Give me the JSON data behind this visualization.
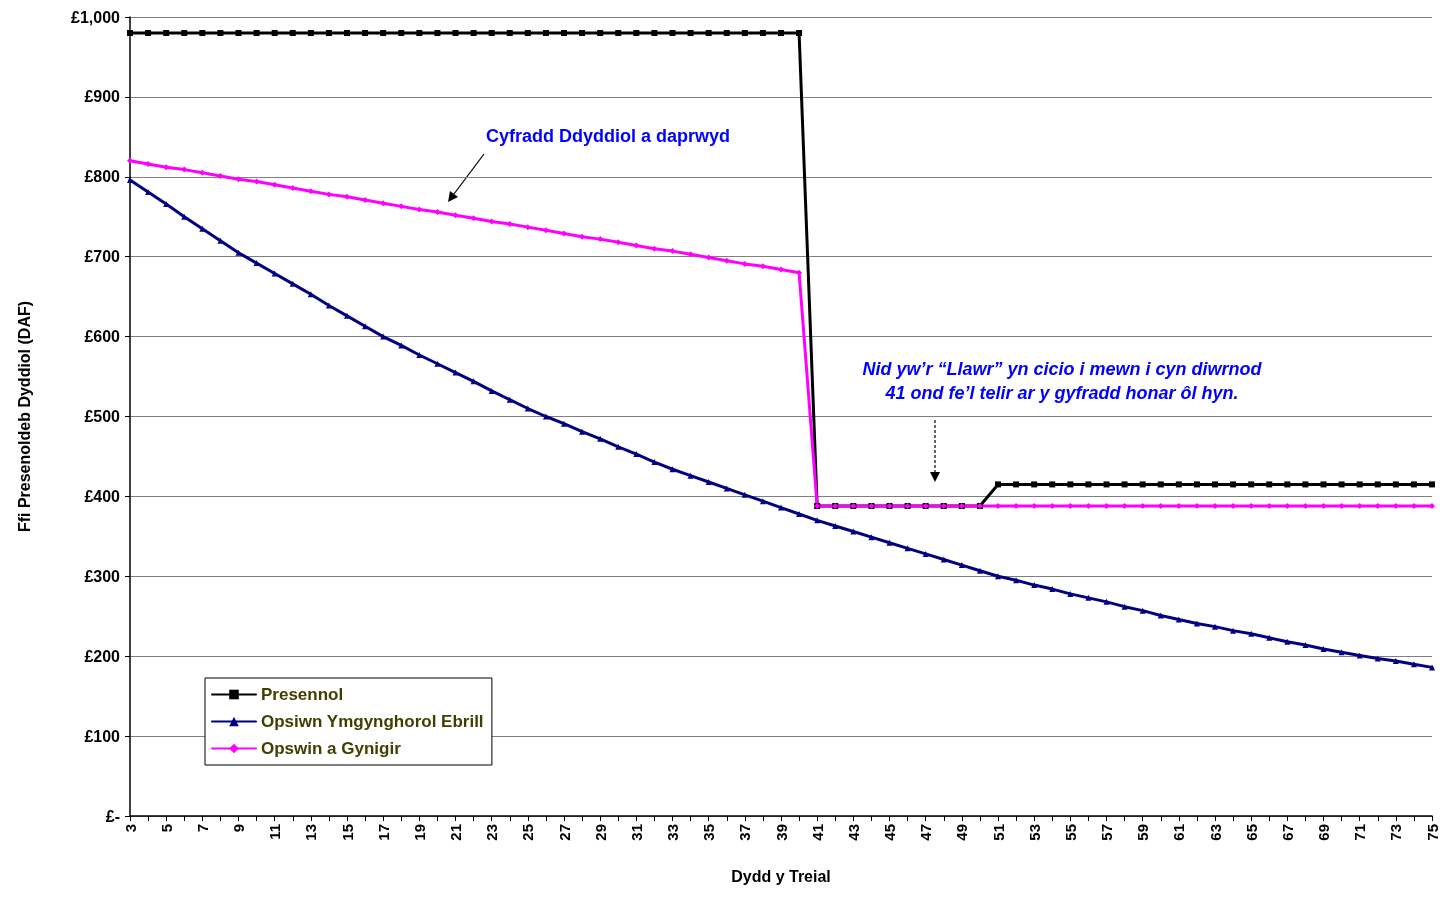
{
  "chart_data": {
    "type": "line",
    "xlabel": "Dydd y Treial",
    "ylabel": "Ffi Presenoldeb Dyddiol (DAF)",
    "categories": [
      "3",
      null,
      "5",
      null,
      "7",
      null,
      "9",
      null,
      "11",
      null,
      "13",
      null,
      "15",
      null,
      "17",
      null,
      "19",
      null,
      "21",
      null,
      "23",
      null,
      "25",
      null,
      "27",
      null,
      "29",
      null,
      "31",
      null,
      "33",
      null,
      "35",
      null,
      "37",
      null,
      "39",
      null,
      "41",
      null,
      "43",
      null,
      "45",
      null,
      "47",
      null,
      "49",
      null,
      "51",
      null,
      "53",
      null,
      "55",
      null,
      "57",
      null,
      "59",
      null,
      "61",
      null,
      "63",
      null,
      "65",
      null,
      "67",
      null,
      "69",
      null,
      "71",
      null,
      "73",
      null,
      "75"
    ],
    "ylim": [
      0,
      1000
    ],
    "yticks": [
      {
        "value": 0,
        "label": "£-"
      },
      {
        "value": 100,
        "label": "£100"
      },
      {
        "value": 200,
        "label": "£200"
      },
      {
        "value": 300,
        "label": "£300"
      },
      {
        "value": 400,
        "label": "£400"
      },
      {
        "value": 500,
        "label": "£500"
      },
      {
        "value": 600,
        "label": "£600"
      },
      {
        "value": 700,
        "label": "£700"
      },
      {
        "value": 800,
        "label": "£800"
      },
      {
        "value": 900,
        "label": "£900"
      },
      {
        "value": 1000,
        "label": "£1,000"
      }
    ],
    "grid": "y",
    "legend": "bottom left",
    "line_style": "solid",
    "series": [
      {
        "name": "Presennol",
        "color": "#000000",
        "marker": "square",
        "values": [
          980,
          980,
          980,
          980,
          980,
          980,
          980,
          980,
          980,
          980,
          980,
          980,
          980,
          980,
          980,
          980,
          980,
          980,
          980,
          980,
          980,
          980,
          980,
          980,
          980,
          980,
          980,
          980,
          980,
          980,
          980,
          980,
          980,
          980,
          980,
          980,
          980,
          980,
          388,
          388,
          388,
          388,
          388,
          388,
          388,
          388,
          388,
          388,
          415,
          415,
          415,
          415,
          415,
          415,
          415,
          415,
          415,
          415,
          415,
          415,
          415,
          415,
          415,
          415,
          415,
          415,
          415,
          415,
          415,
          415,
          415,
          415,
          415
        ]
      },
      {
        "name": "Opsiwn Ymgynghorol Ebrill",
        "color": "#000080",
        "marker": "triangle",
        "values": [
          796,
          781,
          766,
          750,
          735,
          720,
          705,
          692,
          679,
          666,
          653,
          639,
          626,
          613,
          600,
          589,
          577,
          566,
          555,
          544,
          532,
          521,
          510,
          500,
          491,
          481,
          472,
          462,
          453,
          443,
          434,
          426,
          418,
          410,
          402,
          394,
          386,
          378,
          370,
          363,
          356,
          349,
          342,
          335,
          328,
          321,
          314,
          307,
          300,
          295,
          289,
          284,
          278,
          273,
          268,
          262,
          257,
          251,
          246,
          241,
          237,
          232,
          228,
          223,
          218,
          214,
          209,
          205,
          201,
          197,
          194,
          190,
          186
        ]
      },
      {
        "name": "Opswin a Gynigir",
        "color": "#ff00ff",
        "marker": "diamond",
        "values": [
          820,
          816,
          812,
          809,
          805,
          801,
          797,
          794,
          790,
          786,
          782,
          778,
          775,
          771,
          767,
          763,
          759,
          756,
          752,
          748,
          744,
          741,
          737,
          733,
          729,
          725,
          722,
          718,
          714,
          710,
          707,
          703,
          699,
          695,
          691,
          688,
          684,
          680,
          388,
          388,
          388,
          388,
          388,
          388,
          388,
          388,
          388,
          388,
          388,
          388,
          388,
          388,
          388,
          388,
          388,
          388,
          388,
          388,
          388,
          388,
          388,
          388,
          388,
          388,
          388,
          388,
          388,
          388,
          388,
          388,
          388,
          388,
          388
        ]
      }
    ],
    "annotations": [
      "Cyfradd Ddyddiol a daprwyd",
      "Nid yw’r “Llawr” yn cicio i mewn i cyn diwrnod\n41 ond fe’l telir ar y gyfradd honar ôl hyn."
    ]
  }
}
